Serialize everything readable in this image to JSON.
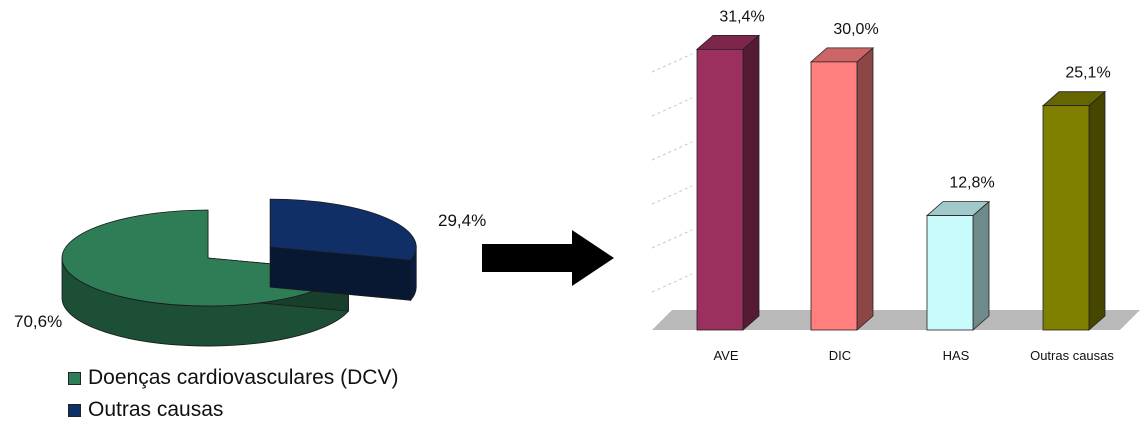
{
  "colors": {
    "dcv": "#2e7d57",
    "outras": "#0f2f66",
    "ave": "#9b2f5e",
    "dic": "#ff7f7f",
    "has": "#c9fbfd",
    "outras_bar": "#808000",
    "floor": "#b9b9b9",
    "arrow": "#000000"
  },
  "legend": {
    "items": [
      {
        "label": "Doenças cardiovasculares (DCV)",
        "color": "#2e7d57"
      },
      {
        "label": "Outras causas",
        "color": "#0f2f66"
      }
    ]
  },
  "connector": {
    "icon": "right-arrow-icon"
  },
  "chart_data": [
    {
      "type": "pie",
      "categories": [
        "Doenças cardiovasculares (DCV)",
        "Outras causas"
      ],
      "values": [
        70.6,
        29.4
      ],
      "labels": [
        "70,6%",
        "29,4%"
      ],
      "exploded": "Outras causas",
      "style": "3d",
      "legend": "bottom"
    },
    {
      "type": "bar",
      "categories": [
        "AVE",
        "DIC",
        "HAS",
        "Outras causas"
      ],
      "values": [
        31.4,
        30.0,
        12.8,
        25.1
      ],
      "labels": [
        "31,4%",
        "30,0%",
        "12,8%",
        "25,1%"
      ],
      "colors": [
        "#9b2f5e",
        "#ff7f7f",
        "#c9fbfd",
        "#808000"
      ],
      "ylim": [
        0,
        32
      ],
      "grid": true,
      "style": "3d"
    }
  ]
}
